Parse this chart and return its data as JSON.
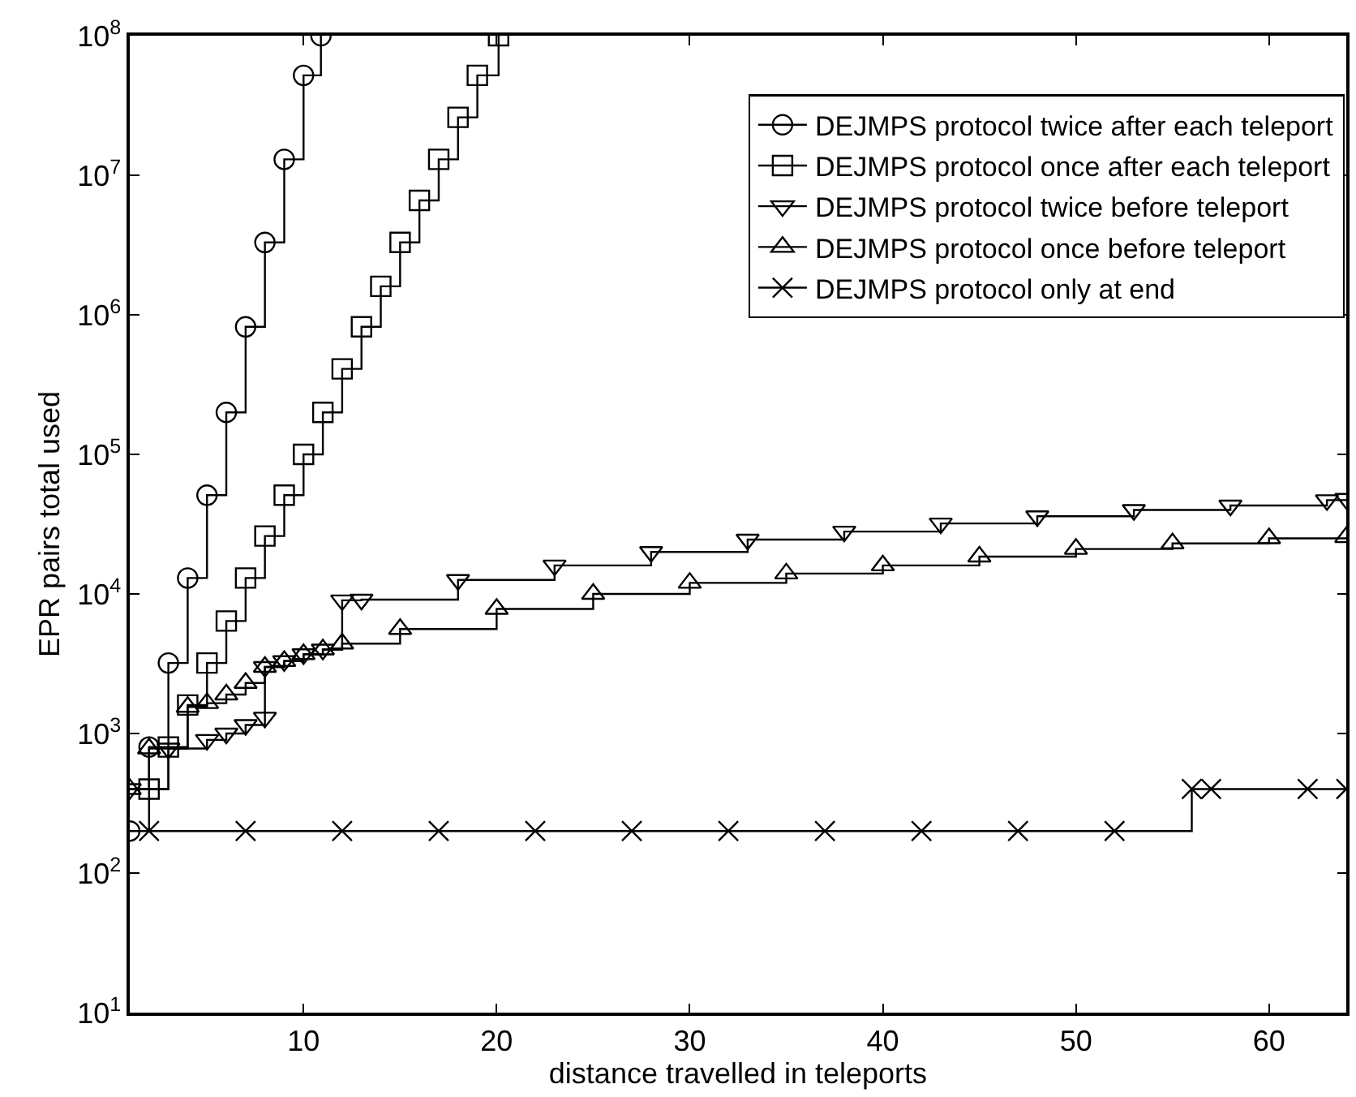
{
  "chart_data": {
    "type": "step",
    "xlabel": "distance travelled in teleports",
    "ylabel": "EPR pairs total used",
    "log": "y",
    "xlim": [
      1,
      64
    ],
    "xticks": [
      10,
      20,
      30,
      40,
      50,
      60
    ],
    "ylim": [
      10,
      100000000
    ],
    "yticks": [
      {
        "value": 10,
        "label": "10$^{1}$"
      },
      {
        "value": 100,
        "label": "10$^{2}$"
      },
      {
        "value": 1000,
        "label": "10$^{3}$"
      },
      {
        "value": 10000,
        "label": "10$^{4}$"
      },
      {
        "value": 100000,
        "label": "10$^{5}$"
      },
      {
        "value": 1000000,
        "label": "10$^{6}$"
      },
      {
        "value": 10000000,
        "label": "10$^{7}$"
      },
      {
        "value": 100000000,
        "label": "10$^{8}$"
      }
    ],
    "legend": "top right",
    "line_style": "solid",
    "series": [
      {
        "name": "DEJMPS protocol twice after each teleport",
        "color": "#000000",
        "marker": "circle",
        "x": [
          1,
          2,
          3,
          4,
          5,
          6,
          7,
          8,
          9,
          10,
          10.9
        ],
        "values": [
          200,
          800,
          3200,
          13000,
          51000,
          200000,
          820000,
          3300000,
          13000000,
          52000000,
          100000000
        ]
      },
      {
        "name": "DEJMPS protocol once after each teleport",
        "color": "#000000",
        "marker": "square",
        "x": [
          2,
          3,
          4,
          5,
          6,
          7,
          8,
          9,
          10,
          11,
          12,
          13,
          14,
          15,
          16,
          17,
          18,
          19,
          20.1
        ],
        "values": [
          400,
          800,
          1600,
          3200,
          6400,
          13000,
          26000,
          51000,
          100000,
          200000,
          410000,
          820000,
          1600000,
          3300000,
          6600000,
          13000000,
          26000000,
          52000000,
          100000000
        ]
      },
      {
        "name": "DEJMPS protocol twice before teleport",
        "color": "#000000",
        "marker": "triangle-down",
        "x": [
          1,
          3,
          5,
          6,
          7,
          8,
          8,
          9,
          10,
          11,
          12,
          13,
          18,
          23,
          28,
          33,
          38,
          43,
          48,
          53,
          58,
          63,
          64
        ],
        "values": [
          400,
          780,
          900,
          1000,
          1150,
          1300,
          3000,
          3300,
          3700,
          4000,
          9000,
          9100,
          12600,
          16000,
          20000,
          24500,
          28000,
          32000,
          36000,
          40000,
          43000,
          47000,
          48000
        ]
      },
      {
        "name": "DEJMPS protocol once before teleport",
        "color": "#000000",
        "marker": "triangle",
        "x": [
          1,
          2,
          4,
          5,
          6,
          7,
          8,
          9,
          10,
          11,
          12,
          15,
          20,
          25,
          30,
          35,
          40,
          45,
          50,
          55,
          60,
          64
        ],
        "values": [
          400,
          780,
          1550,
          1650,
          1900,
          2300,
          3000,
          3300,
          3700,
          4000,
          4400,
          5600,
          7800,
          10000,
          12000,
          14000,
          16000,
          18500,
          21000,
          23000,
          25000,
          25500
        ]
      },
      {
        "name": "DEJMPS protocol only at end",
        "color": "#000000",
        "marker": "cross",
        "x": [
          2,
          7,
          12,
          17,
          22,
          27,
          32,
          37,
          42,
          47,
          52,
          56,
          57,
          62,
          64
        ],
        "values": [
          200,
          200,
          200,
          200,
          200,
          200,
          200,
          200,
          200,
          200,
          200,
          400,
          400,
          400,
          400
        ]
      }
    ]
  }
}
